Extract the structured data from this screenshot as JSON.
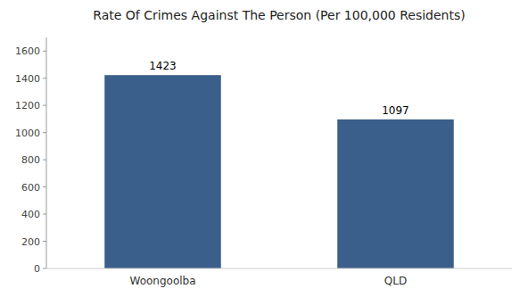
{
  "chart_data": {
    "type": "bar",
    "title": "Rate Of Crimes Against The Person (Per 100,000 Residents)",
    "categories": [
      "Woongoolba",
      "QLD"
    ],
    "values": [
      1423,
      1097
    ],
    "color": "#3a5f8a",
    "ylim": [
      0,
      1700
    ],
    "yticks": [
      0,
      200,
      400,
      600,
      800,
      1000,
      1200,
      1400,
      1600
    ],
    "grid": false,
    "data_labels": true
  }
}
